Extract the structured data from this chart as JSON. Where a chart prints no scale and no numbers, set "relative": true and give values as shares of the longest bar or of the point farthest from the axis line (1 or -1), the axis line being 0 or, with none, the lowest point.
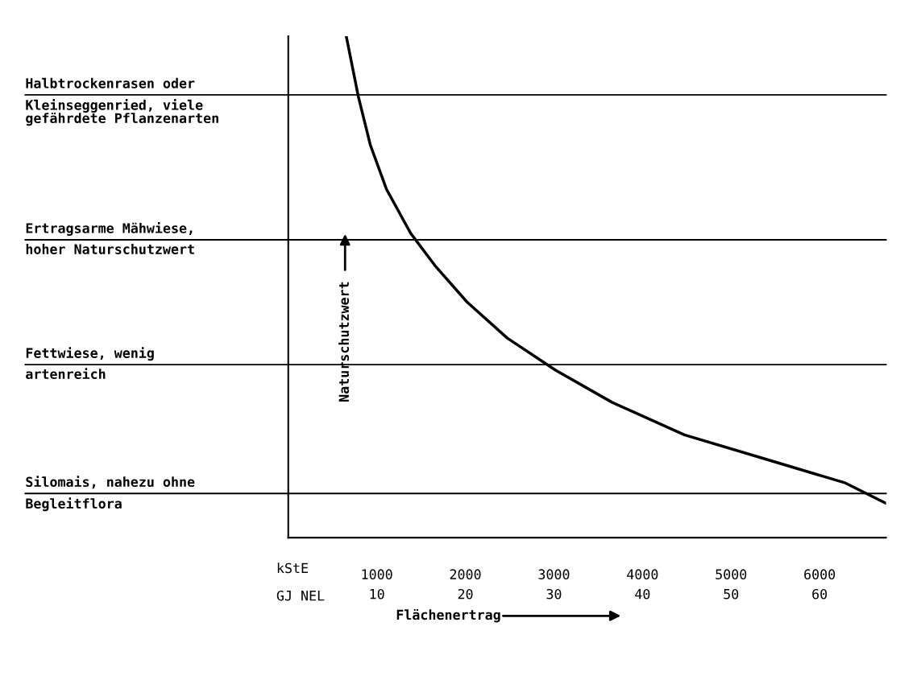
{
  "chart_data": {
    "type": "line",
    "relative": true,
    "xlabel": "Flächenertrag",
    "ylabel": "Naturschutzwert",
    "xlim": [
      0,
      6750
    ],
    "xticks": [
      1000,
      2000,
      3000,
      4000,
      5000,
      6000
    ],
    "x2lim": [
      0,
      67.5
    ],
    "x2ticks": [
      10,
      20,
      30,
      40,
      50,
      60
    ],
    "annotations": [
      "kStE",
      "GJ NEL"
    ],
    "series": [
      {
        "color": "#000000",
        "x": [
          655,
          791,
          927,
          1109,
          1382,
          1655,
          2018,
          2473,
          3018,
          3655,
          4473,
          5382,
          6291,
          6745
        ],
        "values": [
          1.0,
          0.88,
          0.783,
          0.695,
          0.607,
          0.543,
          0.47,
          0.398,
          0.334,
          0.27,
          0.205,
          0.157,
          0.109,
          0.069
        ]
      }
    ],
    "ref_lines": [
      {
        "axis": "y",
        "value": 0.883,
        "label": "Halbtrockenrasen oder\nKleinseggenried, viele\ngefährdete Pflanzenarten"
      },
      {
        "axis": "y",
        "value": 0.594,
        "label": "Ertragsarme Mähwiese,\nhoher Naturschutzwert"
      },
      {
        "axis": "y",
        "value": 0.345,
        "label": "Fettwiese, wenig\nartenreich"
      },
      {
        "axis": "y",
        "value": 0.088,
        "label": "Silomais, nahezu ohne\nBegleitflora"
      }
    ],
    "grid": false,
    "legend": false,
    "marker": "none",
    "line_style": "solid"
  }
}
